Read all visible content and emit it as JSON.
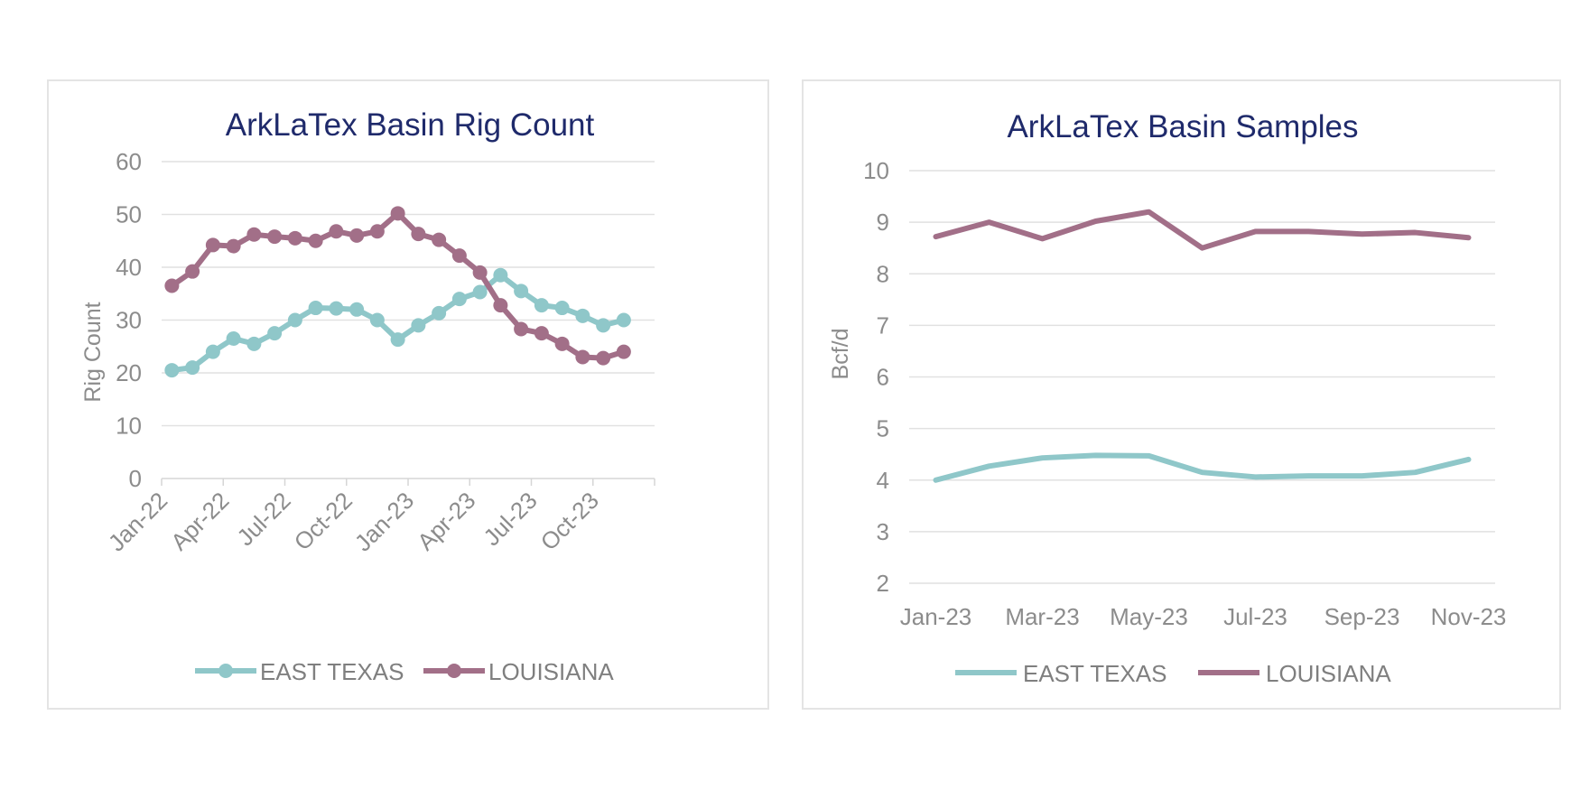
{
  "chart_data": [
    {
      "type": "line",
      "title": "ArkLaTex Basin Rig Count",
      "ylabel": "Rig Count",
      "xlabel": "",
      "ylim": [
        0,
        60
      ],
      "yticks": [
        "0",
        "10",
        "20",
        "30",
        "40",
        "50",
        "60"
      ],
      "xtick_labels": [
        "Jan-22",
        "Apr-22",
        "Jul-22",
        "Oct-22",
        "Jan-23",
        "Apr-23",
        "Jul-23",
        "Oct-23"
      ],
      "x": [
        "Jan-22",
        "Feb-22",
        "Mar-22",
        "Apr-22",
        "May-22",
        "Jun-22",
        "Jul-22",
        "Aug-22",
        "Sep-22",
        "Oct-22",
        "Nov-22",
        "Dec-22",
        "Jan-23",
        "Feb-23",
        "Mar-23",
        "Apr-23",
        "May-23",
        "Jun-23",
        "Jul-23",
        "Aug-23",
        "Sep-23",
        "Oct-23",
        "Nov-23",
        "Dec-23"
      ],
      "series": [
        {
          "name": "EAST TEXAS",
          "color": "#8fc7c9",
          "values": [
            20.5,
            21,
            24,
            26.5,
            25.5,
            27.5,
            30,
            32.3,
            32.2,
            32,
            30,
            26.3,
            29,
            31.3,
            34,
            35.3,
            38.5,
            35.5,
            32.8,
            32.3,
            30.8,
            29,
            30,
            null
          ]
        },
        {
          "name": "LOUISIANA",
          "color": "#a26f88",
          "values": [
            36.5,
            39.2,
            44.2,
            44,
            46.2,
            45.8,
            45.5,
            45,
            46.8,
            46,
            46.8,
            50.2,
            46.3,
            45.2,
            42.2,
            39,
            32.8,
            28.3,
            27.5,
            25.5,
            23,
            22.8,
            24,
            null
          ]
        }
      ],
      "grid": true,
      "legend": "bottom",
      "markers": true
    },
    {
      "type": "line",
      "title": "ArkLaTex Basin Samples",
      "ylabel": "Bcf/d",
      "xlabel": "",
      "ylim": [
        2,
        10
      ],
      "yticks": [
        "2",
        "3",
        "4",
        "5",
        "6",
        "7",
        "8",
        "9",
        "10"
      ],
      "xtick_labels": [
        "Jan-23",
        "Mar-23",
        "May-23",
        "Jul-23",
        "Sep-23",
        "Nov-23"
      ],
      "x": [
        "Jan-23",
        "Feb-23",
        "Mar-23",
        "Apr-23",
        "May-23",
        "Jun-23",
        "Jul-23",
        "Aug-23",
        "Sep-23",
        "Oct-23",
        "Nov-23"
      ],
      "series": [
        {
          "name": "EAST TEXAS",
          "color": "#8fc7c9",
          "values": [
            4.0,
            4.27,
            4.43,
            4.48,
            4.47,
            4.15,
            4.06,
            4.08,
            4.08,
            4.15,
            4.4
          ]
        },
        {
          "name": "LOUISIANA",
          "color": "#a26f88",
          "values": [
            8.72,
            9.0,
            8.68,
            9.02,
            9.2,
            8.5,
            8.82,
            8.82,
            8.77,
            8.8,
            8.7
          ]
        }
      ],
      "grid": true,
      "legend": "bottom",
      "markers": false
    }
  ]
}
